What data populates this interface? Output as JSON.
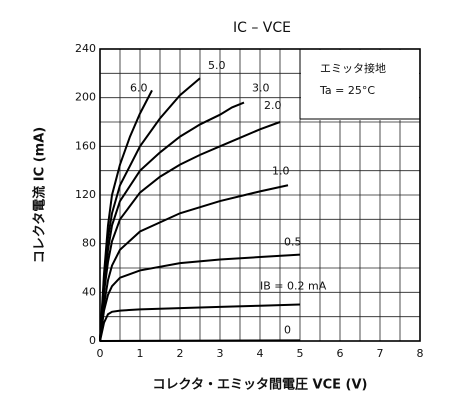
{
  "chart_data": {
    "type": "line",
    "title": "IC – VCE",
    "x_label": "コレクタ・エミッタ間電圧  VCE  (V)",
    "y_label": "コレクタ電流  IC  (mA)",
    "annotations": [
      "エミッタ接地",
      "Ta = 25°C"
    ],
    "xlim": [
      0,
      8
    ],
    "xticks": [
      0,
      1,
      2,
      3,
      4,
      5,
      6,
      7,
      8
    ],
    "ylim": [
      0,
      240
    ],
    "yticks": [
      0,
      40,
      80,
      120,
      160,
      200,
      240
    ],
    "grid": true,
    "series": [
      {
        "name": "6.0",
        "color": "#000000",
        "x": [
          0,
          0.1,
          0.2,
          0.3,
          0.5,
          0.75,
          1,
          1.3
        ],
        "values": [
          0,
          55,
          95,
          120,
          145,
          168,
          187,
          206
        ]
      },
      {
        "name": "5.0",
        "color": "#000000",
        "x": [
          0,
          0.1,
          0.2,
          0.3,
          0.5,
          1,
          1.5,
          2,
          2.5
        ],
        "values": [
          0,
          50,
          85,
          105,
          128,
          160,
          183,
          202,
          216
        ]
      },
      {
        "name": "3.0",
        "color": "#000000",
        "x": [
          0,
          0.1,
          0.2,
          0.3,
          0.5,
          1,
          1.5,
          2,
          2.5,
          3,
          3.3,
          3.6
        ],
        "values": [
          0,
          45,
          75,
          95,
          115,
          140,
          155,
          168,
          178,
          186,
          192,
          196
        ]
      },
      {
        "name": "2.0",
        "color": "#000000",
        "x": [
          0,
          0.1,
          0.2,
          0.3,
          0.5,
          1,
          1.5,
          2,
          2.5,
          3,
          3.5,
          4,
          4.5
        ],
        "values": [
          0,
          40,
          65,
          82,
          100,
          122,
          135,
          145,
          153,
          160,
          167,
          174,
          180
        ]
      },
      {
        "name": "1.0",
        "color": "#000000",
        "x": [
          0,
          0.1,
          0.2,
          0.3,
          0.5,
          1,
          2,
          3,
          4,
          4.7
        ],
        "values": [
          0,
          30,
          50,
          62,
          75,
          90,
          105,
          115,
          123,
          128
        ]
      },
      {
        "name": "0.5",
        "color": "#000000",
        "x": [
          0,
          0.1,
          0.2,
          0.3,
          0.5,
          1,
          2,
          3,
          4,
          5
        ],
        "values": [
          0,
          25,
          38,
          45,
          52,
          58,
          64,
          67,
          69,
          71
        ]
      },
      {
        "name": "IB = 0.2 mA",
        "color": "#000000",
        "x": [
          0,
          0.1,
          0.2,
          0.3,
          0.5,
          1,
          2,
          3,
          4,
          5
        ],
        "values": [
          0,
          15,
          22,
          24,
          25,
          26,
          27,
          28,
          29,
          30
        ]
      },
      {
        "name": "0",
        "color": "#000000",
        "x": [
          0,
          5
        ],
        "values": [
          0,
          0.5
        ]
      }
    ]
  }
}
